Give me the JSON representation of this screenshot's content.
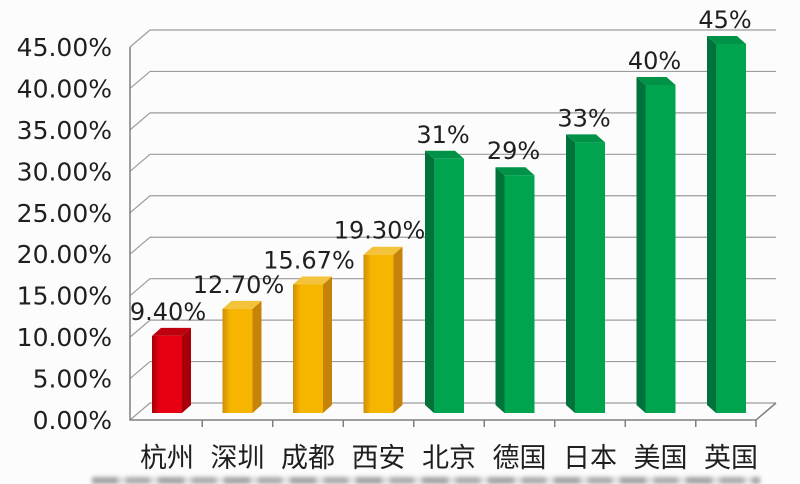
{
  "chart_data": {
    "type": "bar",
    "style": "3d-column",
    "title": "",
    "categories": [
      "杭州",
      "深圳",
      "成都",
      "西安",
      "北京",
      "德国",
      "日本",
      "美国",
      "英国"
    ],
    "values": [
      9.4,
      12.7,
      15.67,
      19.3,
      31,
      29,
      33,
      40,
      45
    ],
    "value_labels": [
      "9.40%",
      "12.70%",
      "15.67%",
      "19.30%",
      "31%",
      "29%",
      "33%",
      "40%",
      "45%"
    ],
    "bar_groups": [
      "red",
      "yellow",
      "yellow",
      "yellow",
      "green",
      "green",
      "green",
      "green",
      "green"
    ],
    "palette": {
      "red": {
        "front": "#e60012",
        "side": "#a80009",
        "top": "#bf000e",
        "edge": "#a50008"
      },
      "yellow": {
        "front": "#f6b600",
        "side": "#c5830a",
        "top": "#f3c33c",
        "edge": "#cf8e08"
      },
      "green": {
        "front": "#00a44e",
        "side": "#00723a",
        "top": "#009247",
        "edge": "#00a44e"
      }
    },
    "y_axis": {
      "ticks": [
        "45.00%",
        "40.00%",
        "35.00%",
        "30.00%",
        "25.00%",
        "20.00%",
        "15.00%",
        "10.00%",
        "5.00%",
        "0.00%"
      ],
      "min": 0,
      "max": 45,
      "step": 5
    },
    "xlabel": "",
    "ylabel": "",
    "grid": true,
    "legend": null,
    "colors": {
      "grid": "#9c9c9c",
      "axis": "#7f7f7f",
      "text": "#1f1f1f",
      "background": "#fcfcfc"
    }
  }
}
